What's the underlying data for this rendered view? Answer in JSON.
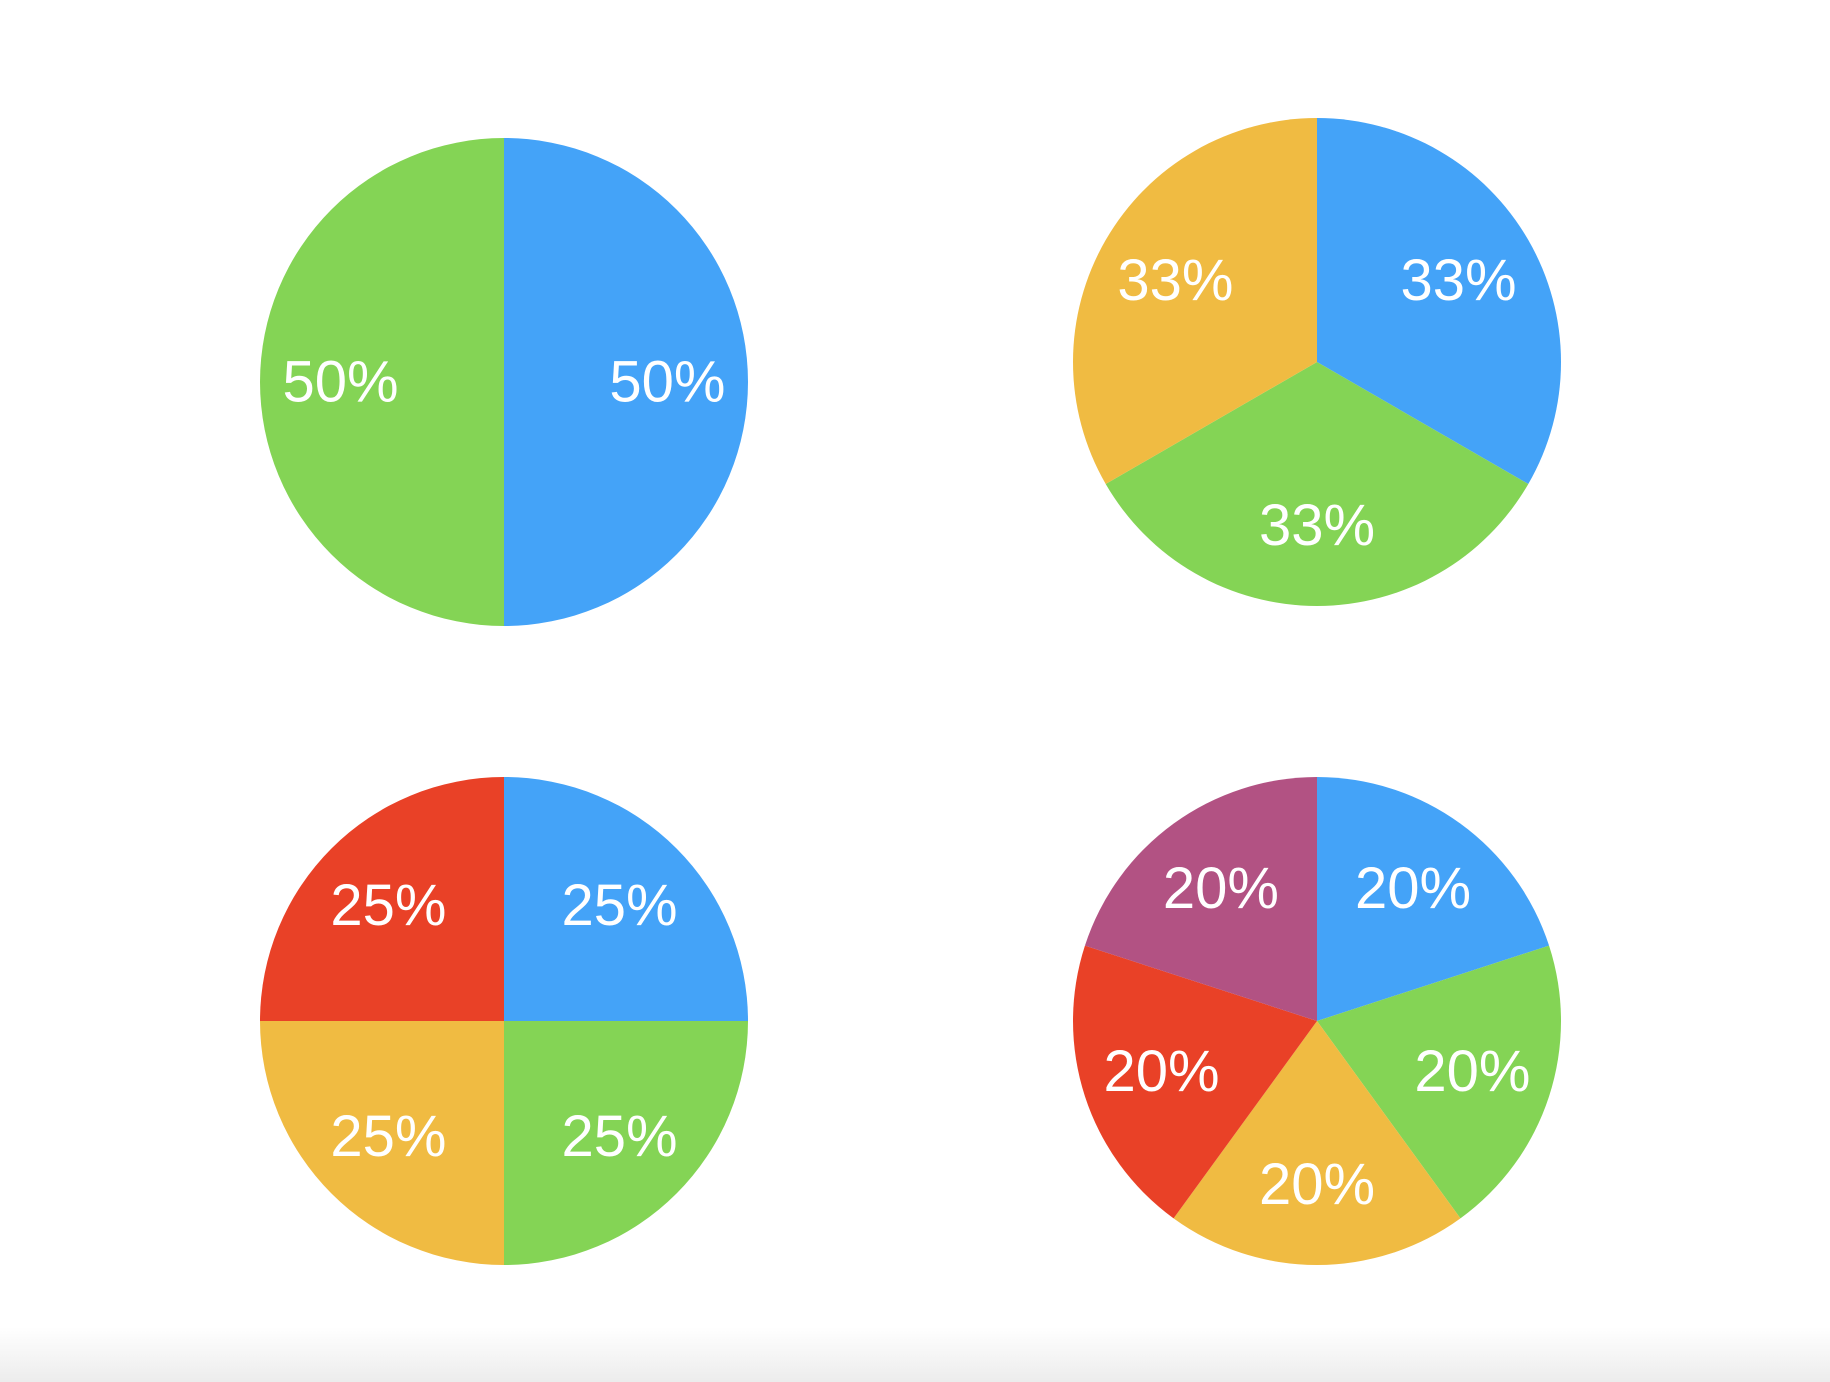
{
  "chart_data": [
    {
      "type": "pie",
      "slices": [
        {
          "value": 50,
          "label": "50%",
          "color": "#44A3F8"
        },
        {
          "value": 50,
          "label": "50%",
          "color": "#84D455"
        }
      ]
    },
    {
      "type": "pie",
      "slices": [
        {
          "value": 33.33,
          "label": "33%",
          "color": "#44A3F8"
        },
        {
          "value": 33.33,
          "label": "33%",
          "color": "#84D455"
        },
        {
          "value": 33.33,
          "label": "33%",
          "color": "#F0BB42"
        }
      ]
    },
    {
      "type": "pie",
      "slices": [
        {
          "value": 25,
          "label": "25%",
          "color": "#44A3F8"
        },
        {
          "value": 25,
          "label": "25%",
          "color": "#84D455"
        },
        {
          "value": 25,
          "label": "25%",
          "color": "#F0BB42"
        },
        {
          "value": 25,
          "label": "25%",
          "color": "#E94127"
        }
      ]
    },
    {
      "type": "pie",
      "slices": [
        {
          "value": 20,
          "label": "20%",
          "color": "#44A3F8"
        },
        {
          "value": 20,
          "label": "20%",
          "color": "#84D455"
        },
        {
          "value": 20,
          "label": "20%",
          "color": "#F0BB42"
        },
        {
          "value": 20,
          "label": "20%",
          "color": "#E94127"
        },
        {
          "value": 20,
          "label": "20%",
          "color": "#B25283"
        }
      ]
    }
  ]
}
